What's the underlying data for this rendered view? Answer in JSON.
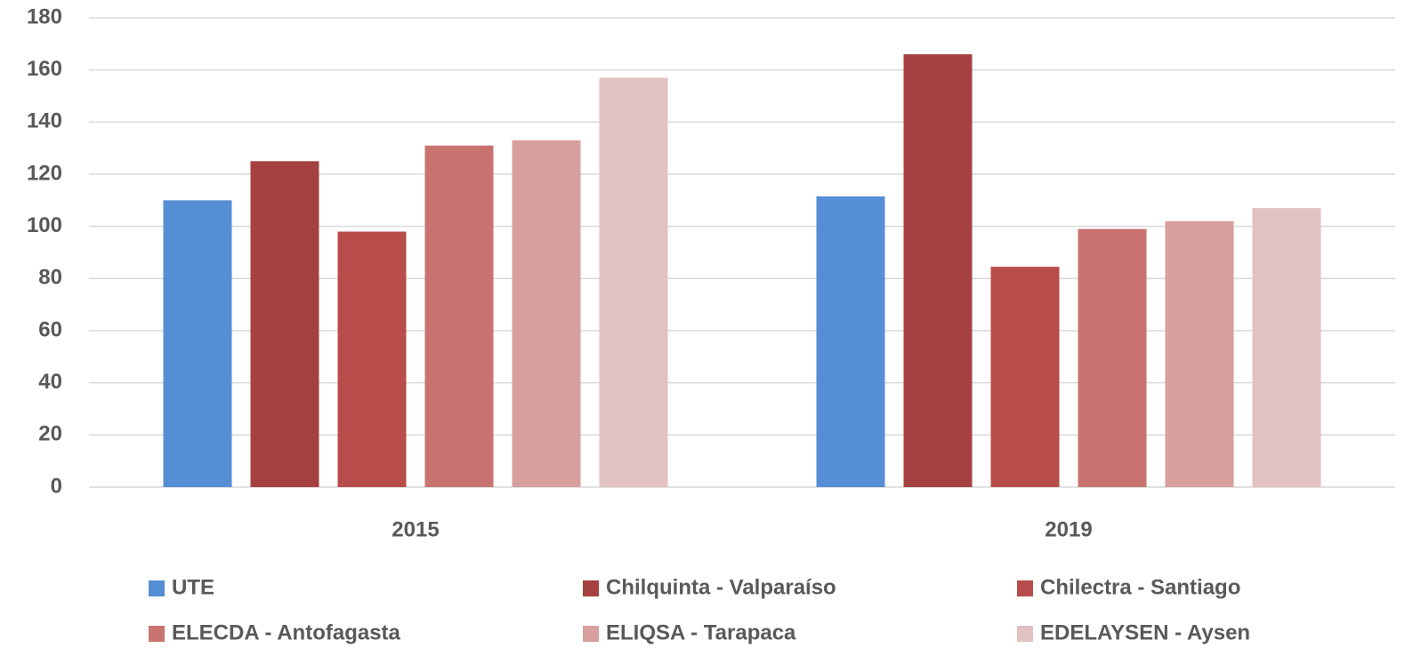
{
  "chart_data": {
    "type": "bar",
    "categories": [
      "2015",
      "2019"
    ],
    "series": [
      {
        "name": "UTE",
        "color": "#558ed5",
        "values": [
          110,
          111.5
        ]
      },
      {
        "name": "Chilquinta - Valparaíso",
        "color": "#a54140",
        "values": [
          125,
          166
        ]
      },
      {
        "name": "Chilectra - Santiago",
        "color": "#b84c4a",
        "values": [
          98,
          84.5
        ]
      },
      {
        "name": "ELECDA  - Antofagasta",
        "color": "#c97370",
        "values": [
          131,
          99
        ]
      },
      {
        "name": "ELIQSA  - Tarapaca",
        "color": "#d79f9e",
        "values": [
          133,
          102
        ]
      },
      {
        "name": "EDELAYSEN  - Aysen",
        "color": "#e2c1c2",
        "values": [
          157,
          107
        ]
      }
    ],
    "ylim": [
      0,
      180
    ],
    "yticks": [
      0,
      20,
      40,
      60,
      80,
      100,
      120,
      140,
      160,
      180
    ],
    "grid": true,
    "legend": "bottom"
  }
}
